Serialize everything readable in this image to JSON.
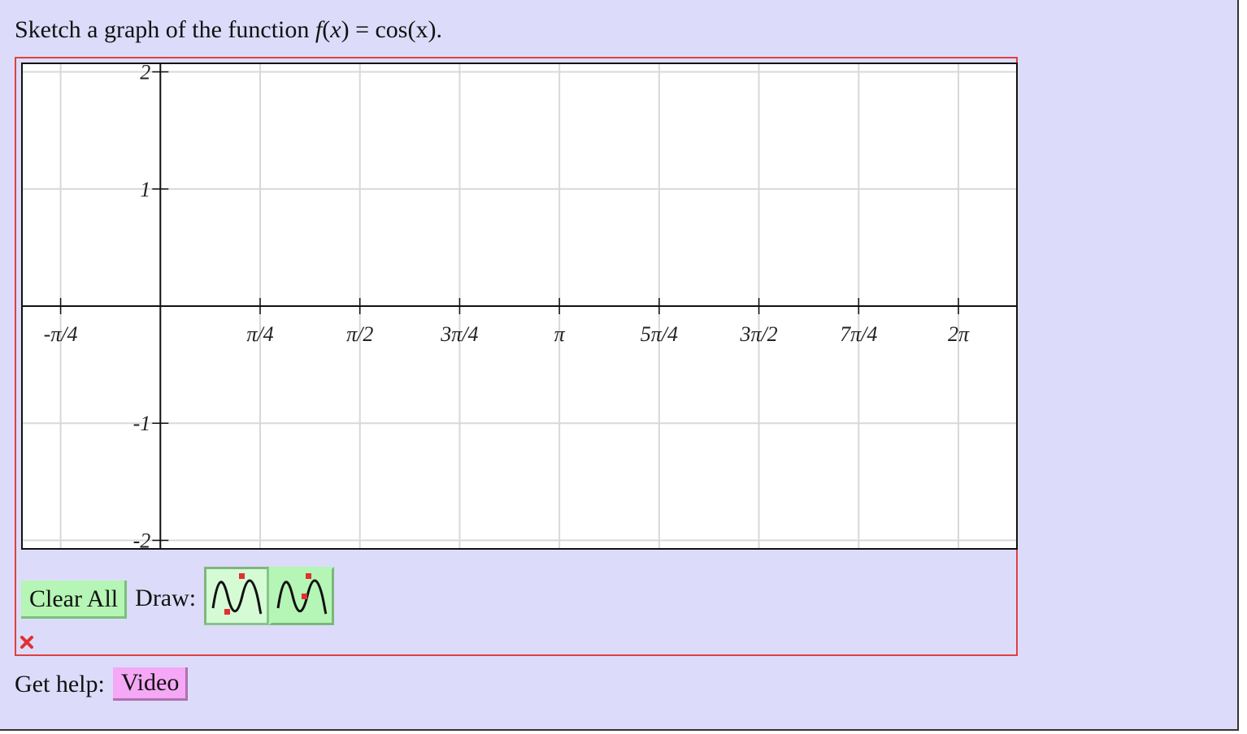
{
  "question": {
    "prefix": "Sketch a graph of the function ",
    "fn": "f",
    "arg_open": "(",
    "var": "x",
    "arg_close": ")",
    "equals": " = ",
    "rhs_fn": "cos",
    "rhs_arg": "(x).",
    "full_text": "Sketch a graph of the function f(x) = cos(x)."
  },
  "graph": {
    "x_ticks": [
      {
        "value": -0.785398,
        "label": "-π/4"
      },
      {
        "value": 0.785398,
        "label": "π/4"
      },
      {
        "value": 1.570796,
        "label": "π/2"
      },
      {
        "value": 2.356194,
        "label": "3π/4"
      },
      {
        "value": 3.141593,
        "label": "π"
      },
      {
        "value": 3.926991,
        "label": "5π/4"
      },
      {
        "value": 4.712389,
        "label": "3π/2"
      },
      {
        "value": 5.497787,
        "label": "7π/4"
      },
      {
        "value": 6.283185,
        "label": "2π"
      }
    ],
    "y_ticks": [
      {
        "value": 2,
        "label": "2"
      },
      {
        "value": 1,
        "label": "1"
      },
      {
        "value": -1,
        "label": "-1"
      },
      {
        "value": -2,
        "label": "-2"
      }
    ],
    "xlim": [
      -1.0963,
      6.7504
    ],
    "ylim": [
      -2.08,
      2.08
    ],
    "grid": true,
    "colors": {
      "grid": "#d8d8d8",
      "axis": "#111111",
      "frame": "#111111"
    }
  },
  "controls": {
    "clear_label": "Clear All",
    "draw_label": "Draw:",
    "tools": [
      {
        "name": "sine-wave-tool",
        "active": true
      },
      {
        "name": "sine-wave-alt-tool",
        "active": false
      }
    ]
  },
  "status": {
    "icon": "x-mark-icon",
    "color": "#e03030"
  },
  "help": {
    "label": "Get help:",
    "video_label": "Video"
  },
  "colors": {
    "page_bg": "#dcdcfa",
    "answer_border": "#e04040",
    "button_green": "#b5f5b5",
    "button_pink": "#f5a8f5"
  }
}
